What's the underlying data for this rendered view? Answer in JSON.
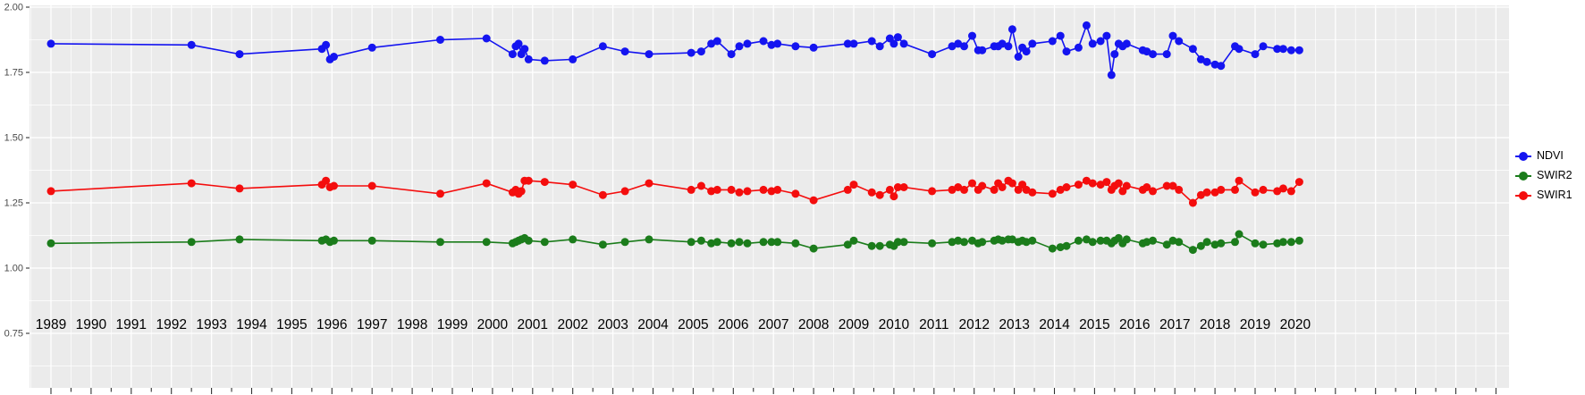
{
  "chart_data": {
    "type": "line",
    "title": "",
    "xlabel": "",
    "ylabel": "",
    "panel_background": "#EBEBEB",
    "gridline_color": "#FFFFFF",
    "axis_text_color_y": "#4A4A4A",
    "axis_text_color_x": "#000000",
    "tick_color": "#333333",
    "legend_position": "right",
    "x_ticks": [
      "1989",
      "1990",
      "1991",
      "1992",
      "1993",
      "1994",
      "1995",
      "1996",
      "1997",
      "1998",
      "1999",
      "2000",
      "2001",
      "2002",
      "2003",
      "2004",
      "2005",
      "2006",
      "2007",
      "2008",
      "2009",
      "2010",
      "2011",
      "2012",
      "2013",
      "2014",
      "2015",
      "2016",
      "2017",
      "2018",
      "2019",
      "2020"
    ],
    "y_ticks": [
      "2.00",
      "1.75",
      "1.50",
      "1.25",
      "1.00",
      "0.75"
    ],
    "y_tick_values": [
      2.0,
      1.75,
      1.5,
      1.25,
      1.0,
      0.75
    ],
    "xlim": [
      1988.45,
      2025.4
    ],
    "ylim": [
      0.54,
      2.01
    ],
    "x": [
      1989.0,
      1992.5,
      1993.7,
      1995.75,
      1995.85,
      1995.95,
      1996.05,
      1997.0,
      1998.7,
      1999.85,
      2000.5,
      2000.58,
      2000.65,
      2000.72,
      2000.8,
      2000.9,
      2001.3,
      2002.0,
      2002.75,
      2003.3,
      2003.9,
      2004.95,
      2005.2,
      2005.45,
      2005.6,
      2005.95,
      2006.15,
      2006.35,
      2006.75,
      2006.95,
      2007.1,
      2007.55,
      2008.0,
      2008.85,
      2009.0,
      2009.45,
      2009.65,
      2009.9,
      2010.0,
      2010.1,
      2010.25,
      2010.95,
      2011.45,
      2011.6,
      2011.75,
      2011.95,
      2012.1,
      2012.2,
      2012.5,
      2012.6,
      2012.7,
      2012.85,
      2012.95,
      2013.1,
      2013.2,
      2013.3,
      2013.45,
      2013.95,
      2014.15,
      2014.3,
      2014.6,
      2014.8,
      2014.95,
      2015.15,
      2015.3,
      2015.42,
      2015.5,
      2015.6,
      2015.7,
      2015.8,
      2016.2,
      2016.3,
      2016.45,
      2016.8,
      2016.95,
      2017.1,
      2017.45,
      2017.65,
      2017.8,
      2018.0,
      2018.15,
      2018.5,
      2018.6,
      2019.0,
      2019.2,
      2019.55,
      2019.7,
      2019.9,
      2020.1
    ],
    "series": [
      {
        "name": "NDVI",
        "color": "#1414F0",
        "values": [
          1.86,
          1.855,
          1.82,
          1.84,
          1.855,
          1.8,
          1.81,
          1.845,
          1.875,
          1.88,
          1.82,
          1.85,
          1.86,
          1.82,
          1.84,
          1.8,
          1.795,
          1.8,
          1.85,
          1.83,
          1.82,
          1.825,
          1.83,
          1.86,
          1.87,
          1.82,
          1.85,
          1.86,
          1.87,
          1.855,
          1.86,
          1.85,
          1.845,
          1.86,
          1.86,
          1.87,
          1.85,
          1.88,
          1.86,
          1.885,
          1.86,
          1.82,
          1.85,
          1.86,
          1.85,
          1.89,
          1.835,
          1.835,
          1.85,
          1.85,
          1.86,
          1.85,
          1.915,
          1.81,
          1.845,
          1.83,
          1.86,
          1.87,
          1.89,
          1.83,
          1.845,
          1.93,
          1.86,
          1.87,
          1.89,
          1.74,
          1.82,
          1.86,
          1.85,
          1.86,
          1.835,
          1.83,
          1.82,
          1.82,
          1.89,
          1.87,
          1.84,
          1.8,
          1.79,
          1.78,
          1.775,
          1.85,
          1.84,
          1.82,
          1.85,
          1.84,
          1.84,
          1.835,
          1.835
        ]
      },
      {
        "name": "SWIR2",
        "color": "#1B7C1B",
        "values": [
          1.095,
          1.1,
          1.11,
          1.105,
          1.11,
          1.1,
          1.105,
          1.105,
          1.1,
          1.1,
          1.095,
          1.1,
          1.105,
          1.11,
          1.115,
          1.105,
          1.1,
          1.11,
          1.09,
          1.1,
          1.11,
          1.1,
          1.105,
          1.095,
          1.1,
          1.095,
          1.1,
          1.095,
          1.1,
          1.1,
          1.1,
          1.095,
          1.075,
          1.09,
          1.105,
          1.085,
          1.085,
          1.09,
          1.085,
          1.1,
          1.1,
          1.095,
          1.1,
          1.105,
          1.1,
          1.105,
          1.095,
          1.1,
          1.105,
          1.11,
          1.105,
          1.11,
          1.11,
          1.1,
          1.105,
          1.1,
          1.105,
          1.075,
          1.08,
          1.085,
          1.105,
          1.11,
          1.1,
          1.105,
          1.105,
          1.095,
          1.105,
          1.115,
          1.095,
          1.11,
          1.095,
          1.1,
          1.105,
          1.09,
          1.105,
          1.1,
          1.07,
          1.085,
          1.1,
          1.09,
          1.095,
          1.1,
          1.13,
          1.095,
          1.09,
          1.095,
          1.1,
          1.1,
          1.105
        ]
      },
      {
        "name": "SWIR1",
        "color": "#F40D0D",
        "values": [
          1.295,
          1.325,
          1.305,
          1.32,
          1.335,
          1.31,
          1.315,
          1.315,
          1.285,
          1.325,
          1.29,
          1.3,
          1.285,
          1.295,
          1.335,
          1.335,
          1.33,
          1.32,
          1.28,
          1.295,
          1.325,
          1.3,
          1.315,
          1.295,
          1.3,
          1.3,
          1.29,
          1.295,
          1.3,
          1.295,
          1.3,
          1.285,
          1.26,
          1.3,
          1.32,
          1.29,
          1.28,
          1.3,
          1.275,
          1.31,
          1.31,
          1.295,
          1.3,
          1.31,
          1.3,
          1.325,
          1.3,
          1.315,
          1.3,
          1.325,
          1.31,
          1.335,
          1.325,
          1.3,
          1.32,
          1.3,
          1.29,
          1.285,
          1.3,
          1.31,
          1.32,
          1.335,
          1.325,
          1.32,
          1.33,
          1.3,
          1.315,
          1.325,
          1.295,
          1.315,
          1.3,
          1.31,
          1.295,
          1.315,
          1.315,
          1.3,
          1.25,
          1.28,
          1.29,
          1.29,
          1.3,
          1.3,
          1.335,
          1.29,
          1.3,
          1.295,
          1.305,
          1.295,
          1.33
        ]
      }
    ],
    "legend_items": [
      {
        "label": "NDVI"
      },
      {
        "label": "SWIR2"
      },
      {
        "label": "SWIR1"
      }
    ]
  }
}
